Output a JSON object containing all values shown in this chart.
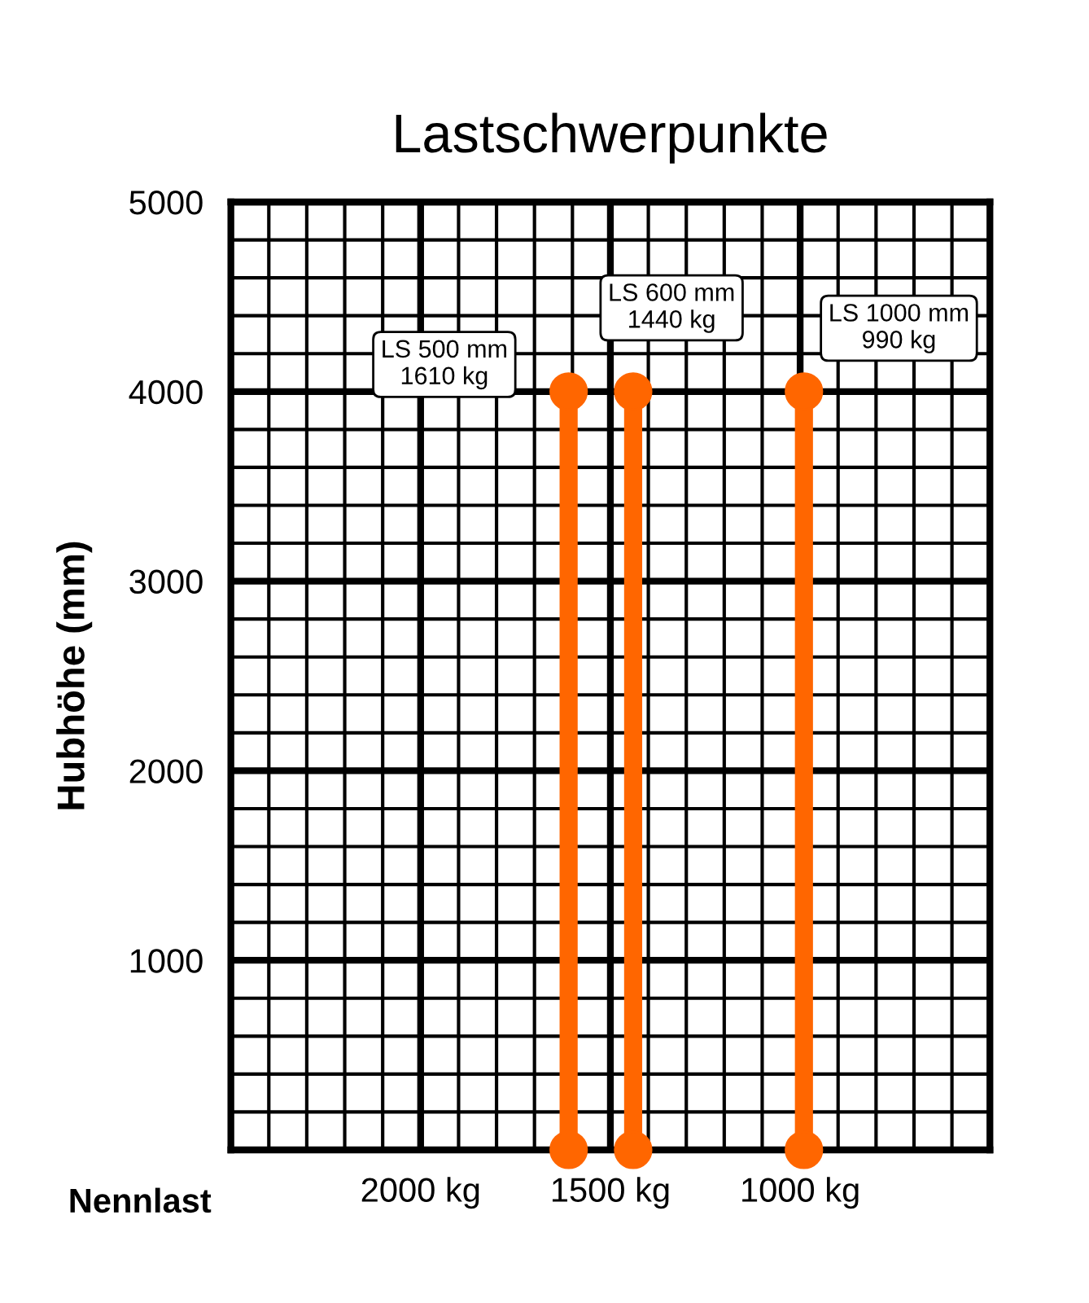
{
  "chart_data": {
    "type": "line",
    "title": "Lastschwerpunkte",
    "xlabel": "Nennlast",
    "ylabel": "Hubhöhe (mm)",
    "xlim": [
      2500,
      500
    ],
    "ylim": [
      0,
      5000
    ],
    "xticks": [
      {
        "value": 2500,
        "label": null
      },
      {
        "value": 2400,
        "label": null
      },
      {
        "value": 2300,
        "label": null
      },
      {
        "value": 2200,
        "label": null
      },
      {
        "value": 2100,
        "label": null
      },
      {
        "value": 2000,
        "label": "2000 kg"
      },
      {
        "value": 1900,
        "label": null
      },
      {
        "value": 1800,
        "label": null
      },
      {
        "value": 1700,
        "label": null
      },
      {
        "value": 1600,
        "label": null
      },
      {
        "value": 1500,
        "label": "1500 kg"
      },
      {
        "value": 1400,
        "label": null
      },
      {
        "value": 1300,
        "label": null
      },
      {
        "value": 1200,
        "label": null
      },
      {
        "value": 1100,
        "label": null
      },
      {
        "value": 1000,
        "label": "1000 kg"
      },
      {
        "value": 900,
        "label": null
      },
      {
        "value": 800,
        "label": null
      },
      {
        "value": 700,
        "label": null
      },
      {
        "value": 600,
        "label": null
      },
      {
        "value": 500,
        "label": null
      }
    ],
    "yticks": [
      {
        "value": 0,
        "label": null
      },
      {
        "value": 200,
        "label": null
      },
      {
        "value": 400,
        "label": null
      },
      {
        "value": 600,
        "label": null
      },
      {
        "value": 800,
        "label": null
      },
      1000,
      {
        "value": 1200,
        "label": null
      },
      {
        "value": 1400,
        "label": null
      },
      {
        "value": 1600,
        "label": null
      },
      {
        "value": 1800,
        "label": null
      },
      2000,
      {
        "value": 2200,
        "label": null
      },
      {
        "value": 2400,
        "label": null
      },
      {
        "value": 2600,
        "label": null
      },
      {
        "value": 2800,
        "label": null
      },
      3000,
      {
        "value": 3200,
        "label": null
      },
      {
        "value": 3400,
        "label": null
      },
      {
        "value": 3600,
        "label": null
      },
      {
        "value": 3800,
        "label": null
      },
      4000,
      {
        "value": 4200,
        "label": null
      },
      {
        "value": 4400,
        "label": null
      },
      {
        "value": 4600,
        "label": null
      },
      {
        "value": 4800,
        "label": null
      },
      5000
    ],
    "grid": true,
    "marker": "circle",
    "line_style": "solid",
    "series": [
      {
        "color": "#ff6600",
        "x": [
          1610,
          1610
        ],
        "values": [
          0,
          4000
        ]
      },
      {
        "color": "#ff6600",
        "x": [
          1440,
          1440
        ],
        "values": [
          0,
          4000
        ]
      },
      {
        "color": "#ff6600",
        "x": [
          990,
          990
        ],
        "values": [
          0,
          4000
        ]
      }
    ],
    "annotations": [
      {
        "text": "LS 500 mm\n1610 kg",
        "x": 1610,
        "y": 4000
      },
      {
        "text": "LS 600 mm\n1440 kg",
        "x": 1440,
        "y": 4000
      },
      {
        "text": "LS 1000 mm\n990 kg",
        "x": 990,
        "y": 4000
      }
    ]
  }
}
